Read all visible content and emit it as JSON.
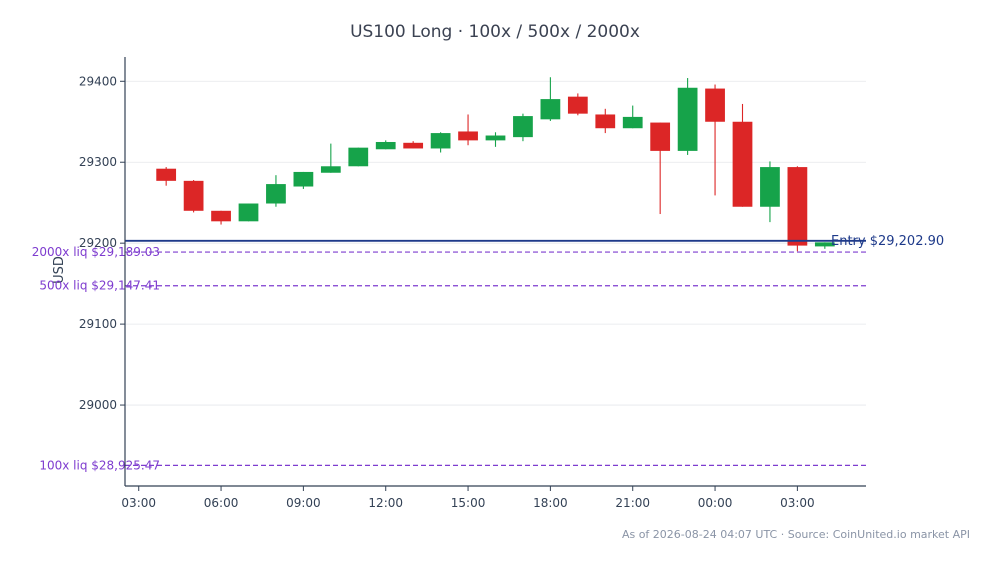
{
  "colors": {
    "up": "#16a34a",
    "down": "#dc2626",
    "entry": "#1e3a8a",
    "liquidation": "#7e3ccf",
    "axis": "#334155",
    "grid": "#e5e7eb",
    "footer": "#8a94a6"
  },
  "chart_data": {
    "type": "candlestick",
    "title": "US100 Long · 100x / 500x / 2000x",
    "ylabel": "USD",
    "xlabel": "",
    "ylim": [
      28900,
      29430
    ],
    "xlim": [
      "2026-08-23 02:30",
      "2026-08-24 05:30"
    ],
    "y_ticks": [
      29000,
      29100,
      29200,
      29300,
      29400
    ],
    "x_ticks": [
      {
        "time": "2026-08-23 03:00",
        "label": "03:00"
      },
      {
        "time": "2026-08-23 06:00",
        "label": "06:00"
      },
      {
        "time": "2026-08-23 09:00",
        "label": "09:00"
      },
      {
        "time": "2026-08-23 12:00",
        "label": "12:00"
      },
      {
        "time": "2026-08-23 15:00",
        "label": "15:00"
      },
      {
        "time": "2026-08-23 18:00",
        "label": "18:00"
      },
      {
        "time": "2026-08-23 21:00",
        "label": "21:00"
      },
      {
        "time": "2026-08-24 00:00",
        "label": "00:00"
      },
      {
        "time": "2026-08-24 03:00",
        "label": "03:00"
      }
    ],
    "grid": "horizontal",
    "candles": [
      {
        "time": "2026-08-23 04:00",
        "open": 29292,
        "high": 29294,
        "low": 29271,
        "close": 29277
      },
      {
        "time": "2026-08-23 05:00",
        "open": 29277,
        "high": 29278,
        "low": 29238,
        "close": 29240
      },
      {
        "time": "2026-08-23 06:00",
        "open": 29240,
        "high": 29240,
        "low": 29223,
        "close": 29227
      },
      {
        "time": "2026-08-23 07:00",
        "open": 29227,
        "high": 29249,
        "low": 29227,
        "close": 29249
      },
      {
        "time": "2026-08-23 08:00",
        "open": 29249,
        "high": 29284,
        "low": 29245,
        "close": 29273
      },
      {
        "time": "2026-08-23 09:00",
        "open": 29270,
        "high": 29288,
        "low": 29267,
        "close": 29288
      },
      {
        "time": "2026-08-23 10:00",
        "open": 29287,
        "high": 29323,
        "low": 29287,
        "close": 29295
      },
      {
        "time": "2026-08-23 11:00",
        "open": 29295,
        "high": 29318,
        "low": 29295,
        "close": 29318
      },
      {
        "time": "2026-08-23 12:00",
        "open": 29316,
        "high": 29327,
        "low": 29316,
        "close": 29325
      },
      {
        "time": "2026-08-23 13:00",
        "open": 29324,
        "high": 29326,
        "low": 29317,
        "close": 29317
      },
      {
        "time": "2026-08-23 14:00",
        "open": 29317,
        "high": 29337,
        "low": 29312,
        "close": 29336
      },
      {
        "time": "2026-08-23 15:00",
        "open": 29338,
        "high": 29359,
        "low": 29321,
        "close": 29327
      },
      {
        "time": "2026-08-23 16:00",
        "open": 29327,
        "high": 29337,
        "low": 29319,
        "close": 29333
      },
      {
        "time": "2026-08-23 17:00",
        "open": 29331,
        "high": 29360,
        "low": 29326,
        "close": 29357
      },
      {
        "time": "2026-08-23 18:00",
        "open": 29353,
        "high": 29405,
        "low": 29351,
        "close": 29378
      },
      {
        "time": "2026-08-23 19:00",
        "open": 29381,
        "high": 29385,
        "low": 29358,
        "close": 29360
      },
      {
        "time": "2026-08-23 20:00",
        "open": 29359,
        "high": 29366,
        "low": 29336,
        "close": 29342
      },
      {
        "time": "2026-08-23 21:00",
        "open": 29342,
        "high": 29370,
        "low": 29342,
        "close": 29356
      },
      {
        "time": "2026-08-23 22:00",
        "open": 29349,
        "high": 29349,
        "low": 29236,
        "close": 29314
      },
      {
        "time": "2026-08-23 23:00",
        "open": 29314,
        "high": 29404,
        "low": 29309,
        "close": 29392
      },
      {
        "time": "2026-08-24 00:00",
        "open": 29391,
        "high": 29396,
        "low": 29259,
        "close": 29350
      },
      {
        "time": "2026-08-24 01:00",
        "open": 29350,
        "high": 29372,
        "low": 29245,
        "close": 29245
      },
      {
        "time": "2026-08-24 02:00",
        "open": 29245,
        "high": 29301,
        "low": 29226,
        "close": 29294
      },
      {
        "time": "2026-08-24 03:00",
        "open": 29294,
        "high": 29295,
        "low": 29190,
        "close": 29197
      },
      {
        "time": "2026-08-24 04:00",
        "open": 29196,
        "high": 29201,
        "low": 29193,
        "close": 29201
      }
    ],
    "levels": [
      {
        "name": "entry",
        "value": 29202.9,
        "label": "Entry $29,202.90",
        "style": "solid"
      },
      {
        "name": "liq-2000x",
        "value": 29189.03,
        "label": "2000x liq $29,189.03",
        "style": "dashed"
      },
      {
        "name": "liq-500x",
        "value": 29147.41,
        "label": "500x liq $29,147.41",
        "style": "dashed"
      },
      {
        "name": "liq-100x",
        "value": 28925.47,
        "label": "100x liq $28,925.47",
        "style": "dashed"
      }
    ]
  },
  "footer": "As of 2026-08-24 04:07 UTC · Source: CoinUnited.io market API"
}
